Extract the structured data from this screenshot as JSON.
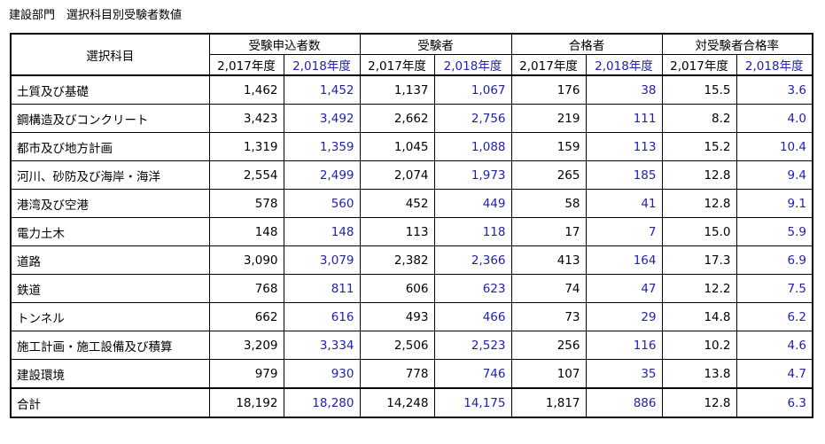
{
  "caption": "建設部門　選択科目別受験者数値",
  "header": {
    "subject": "選択科目",
    "groups": [
      "受験申込者数",
      "受験者",
      "合格者",
      "対受験者合格率"
    ],
    "year_2017": "2,017年度",
    "year_2018": "2,018年度"
  },
  "rows": [
    {
      "name": "土質及び基礎",
      "v": [
        "1,462",
        "1,452",
        "1,137",
        "1,067",
        "176",
        "38",
        "15.5",
        "3.6"
      ]
    },
    {
      "name": "鋼構造及びコンクリート",
      "v": [
        "3,423",
        "3,492",
        "2,662",
        "2,756",
        "219",
        "111",
        "8.2",
        "4.0"
      ]
    },
    {
      "name": "都市及び地方計画",
      "v": [
        "1,319",
        "1,359",
        "1,045",
        "1,088",
        "159",
        "113",
        "15.2",
        "10.4"
      ]
    },
    {
      "name": "河川、砂防及び海岸・海洋",
      "v": [
        "2,554",
        "2,499",
        "2,074",
        "1,973",
        "265",
        "185",
        "12.8",
        "9.4"
      ]
    },
    {
      "name": "港湾及び空港",
      "v": [
        "578",
        "560",
        "452",
        "449",
        "58",
        "41",
        "12.8",
        "9.1"
      ]
    },
    {
      "name": "電力土木",
      "v": [
        "148",
        "148",
        "113",
        "118",
        "17",
        "7",
        "15.0",
        "5.9"
      ]
    },
    {
      "name": "道路",
      "v": [
        "3,090",
        "3,079",
        "2,382",
        "2,366",
        "413",
        "164",
        "17.3",
        "6.9"
      ]
    },
    {
      "name": "鉄道",
      "v": [
        "768",
        "811",
        "606",
        "623",
        "74",
        "47",
        "12.2",
        "7.5"
      ]
    },
    {
      "name": "トンネル",
      "v": [
        "662",
        "616",
        "493",
        "466",
        "73",
        "29",
        "14.8",
        "6.2"
      ]
    },
    {
      "name": "施工計画・施工設備及び積算",
      "v": [
        "3,209",
        "3,334",
        "2,506",
        "2,523",
        "256",
        "116",
        "10.2",
        "4.6"
      ]
    },
    {
      "name": "建設環境",
      "v": [
        "979",
        "930",
        "778",
        "746",
        "107",
        "35",
        "13.8",
        "4.7"
      ]
    }
  ],
  "total": {
    "name": "合計",
    "v": [
      "18,192",
      "18,280",
      "14,248",
      "14,175",
      "1,817",
      "886",
      "12.8",
      "6.3"
    ]
  },
  "colors": {
    "year_2018": "#2222aa",
    "year_2017": "#000000"
  }
}
